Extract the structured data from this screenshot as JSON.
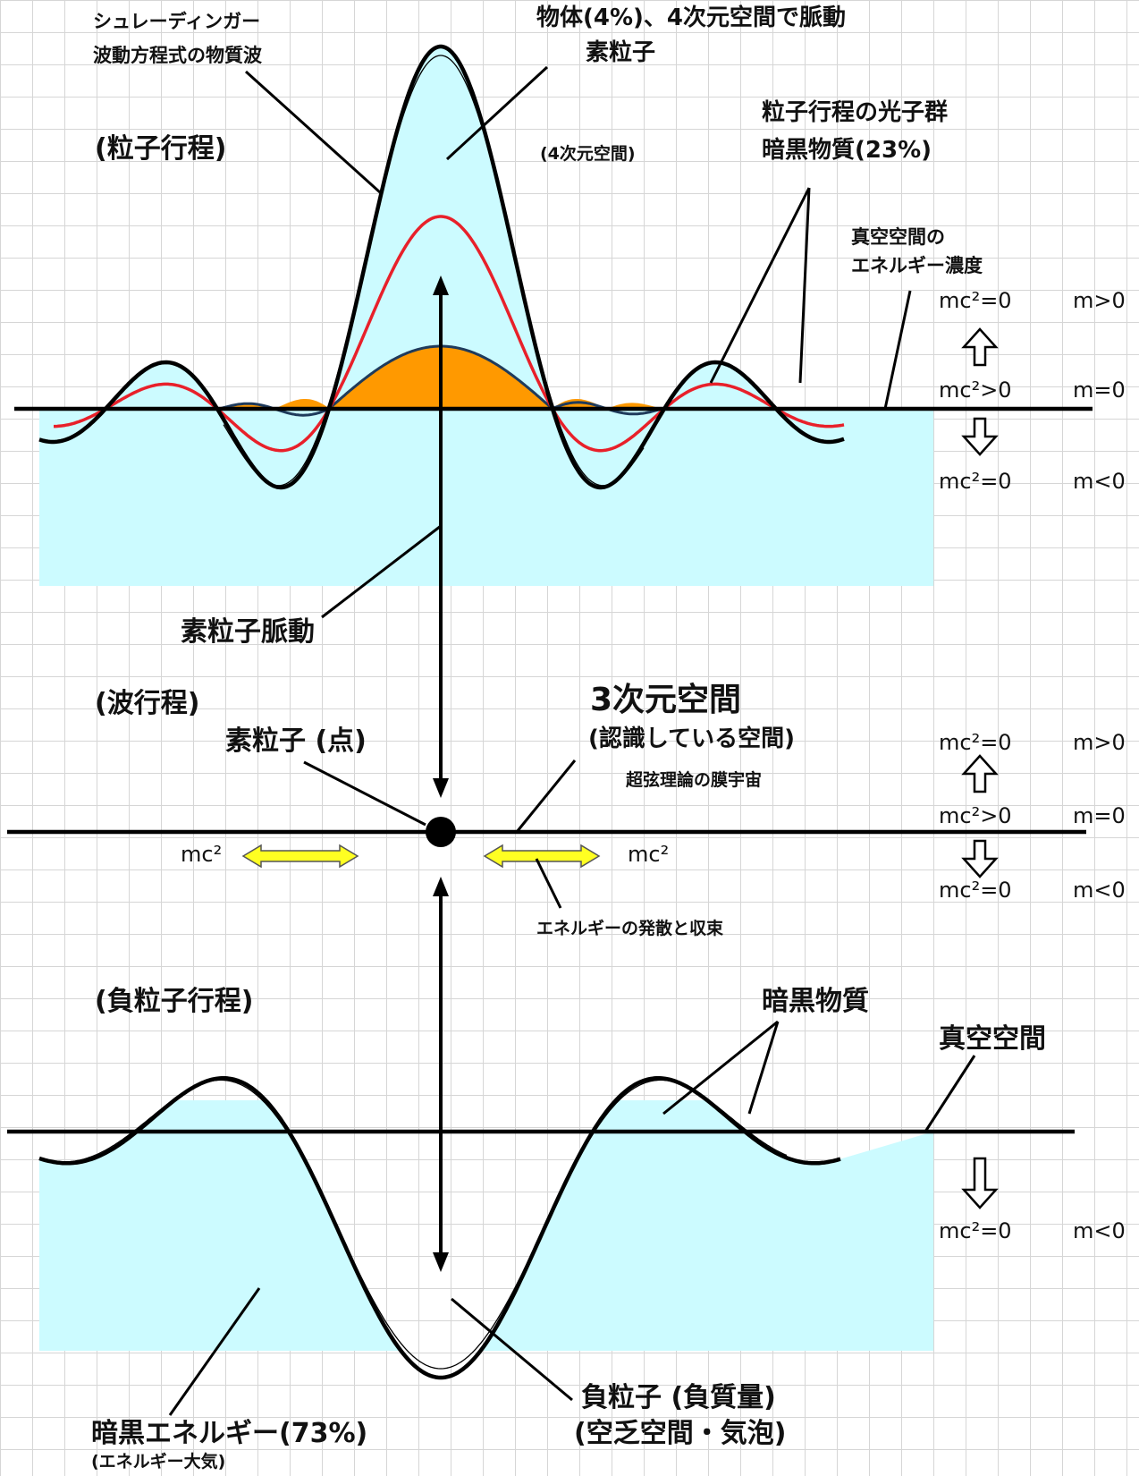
{
  "upper": {
    "schrodinger_line1": "シュレーディンガー",
    "schrodinger_line2": "波動方程式の物質波",
    "matter_line1": "物体(4%)、4次元空間で脈動",
    "matter_line2": "素粒子",
    "particle_process": "(粒子行程)",
    "four_d_space": "(4次元空間)",
    "photons_line1": "粒子行程の光子群",
    "photons_line2": "暗黒物質(23%)",
    "vacuum_line1": "真空空間の",
    "vacuum_line2": "エネルギー濃度",
    "pulse_label": "素粒子脈動",
    "states": [
      {
        "eq": "mc²=0",
        "m": "m>0"
      },
      {
        "eq": "mc²>0",
        "m": "m=0"
      },
      {
        "eq": "mc²=0",
        "m": "m<0"
      }
    ]
  },
  "middle": {
    "wave_process": "(波行程)",
    "point_particle": "素粒子 (点)",
    "three_d_title": "3次元空間",
    "recognized_space": "(認識している空間)",
    "brane": "超弦理論の膜宇宙",
    "mc2_left": "mc²",
    "mc2_right": "mc²",
    "energy_caption": "エネルギーの発散と収束",
    "states": [
      {
        "eq": "mc²=0",
        "m": "m>0"
      },
      {
        "eq": "mc²>0",
        "m": "m=0"
      },
      {
        "eq": "mc²=0",
        "m": "m<0"
      }
    ]
  },
  "lower": {
    "negative_process": "(負粒子行程)",
    "dark_matter": "暗黒物質",
    "vacuum": "真空空間",
    "state": {
      "eq": "mc²=0",
      "m": "m<0"
    },
    "negative_particle_line1": "負粒子 (負質量)",
    "negative_particle_line2": "(空乏空間・気泡)",
    "dark_energy_line1": "暗黒エネルギー(73%)",
    "dark_energy_line2": "(エネルギー大気)"
  },
  "colors": {
    "fill": "#ccfbff",
    "orange": "#ff9900",
    "red": "#e8202a",
    "navy": "#1f3b5c",
    "yellow": "#ffff22"
  }
}
